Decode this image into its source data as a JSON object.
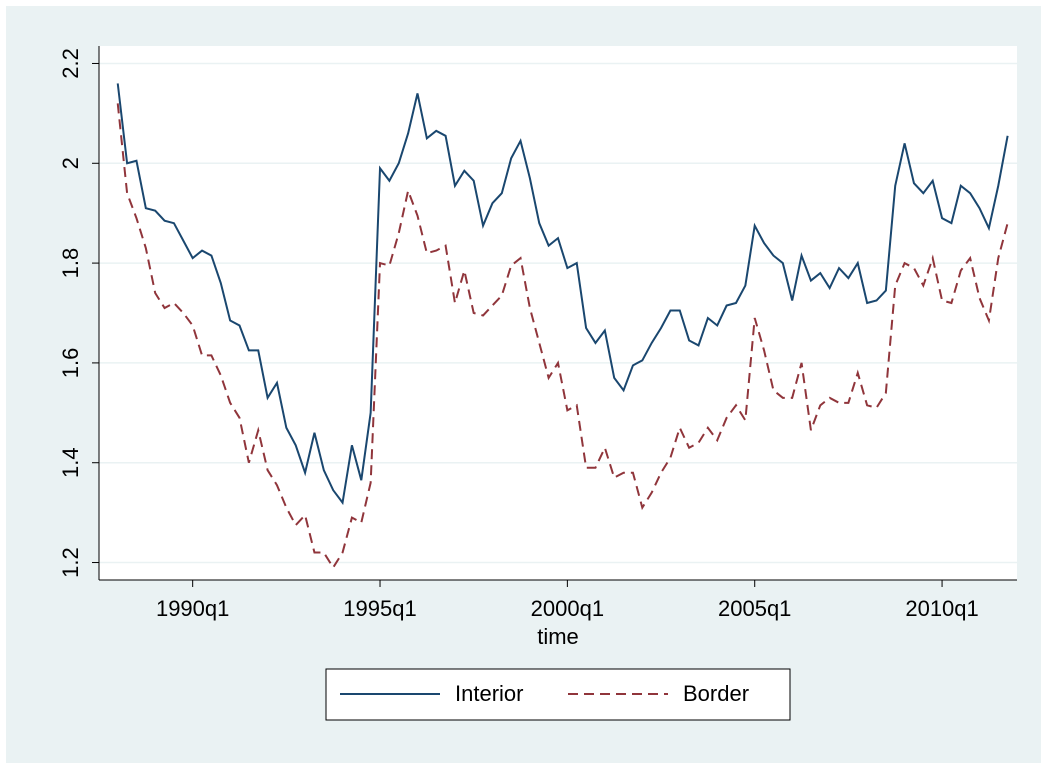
{
  "chart_data": {
    "type": "line",
    "x_label": "time",
    "x": [
      "1988q1",
      "1988q2",
      "1988q3",
      "1988q4",
      "1989q1",
      "1989q2",
      "1989q3",
      "1989q4",
      "1990q1",
      "1990q2",
      "1990q3",
      "1990q4",
      "1991q1",
      "1991q2",
      "1991q3",
      "1991q4",
      "1992q1",
      "1992q2",
      "1992q3",
      "1992q4",
      "1993q1",
      "1993q2",
      "1993q3",
      "1993q4",
      "1994q1",
      "1994q2",
      "1994q3",
      "1994q4",
      "1995q1",
      "1995q2",
      "1995q3",
      "1995q4",
      "1996q1",
      "1996q2",
      "1996q3",
      "1996q4",
      "1997q1",
      "1997q2",
      "1997q3",
      "1997q4",
      "1998q1",
      "1998q2",
      "1998q3",
      "1998q4",
      "1999q1",
      "1999q2",
      "1999q3",
      "1999q4",
      "2000q1",
      "2000q2",
      "2000q3",
      "2000q4",
      "2001q1",
      "2001q2",
      "2001q3",
      "2001q4",
      "2002q1",
      "2002q2",
      "2002q3",
      "2002q4",
      "2003q1",
      "2003q2",
      "2003q3",
      "2003q4",
      "2004q1",
      "2004q2",
      "2004q3",
      "2004q4",
      "2005q1",
      "2005q2",
      "2005q3",
      "2005q4",
      "2006q1",
      "2006q2",
      "2006q3",
      "2006q4",
      "2007q1",
      "2007q2",
      "2007q3",
      "2007q4",
      "2008q1",
      "2008q2",
      "2008q3",
      "2008q4",
      "2009q1",
      "2009q2",
      "2009q3",
      "2009q4",
      "2010q1",
      "2010q2",
      "2010q3",
      "2010q4",
      "2011q1",
      "2011q2",
      "2011q3",
      "2011q4"
    ],
    "series": [
      {
        "name": "Interior",
        "color": "#1a476f",
        "dash": "solid",
        "values": [
          2.16,
          2.0,
          2.005,
          1.91,
          1.905,
          1.885,
          1.88,
          1.845,
          1.81,
          1.825,
          1.815,
          1.76,
          1.685,
          1.675,
          1.625,
          1.625,
          1.53,
          1.56,
          1.47,
          1.435,
          1.38,
          1.46,
          1.385,
          1.345,
          1.32,
          1.435,
          1.365,
          1.5,
          1.99,
          1.965,
          2.0,
          2.06,
          2.14,
          2.05,
          2.065,
          2.055,
          1.955,
          1.985,
          1.965,
          1.875,
          1.92,
          1.94,
          2.01,
          2.045,
          1.97,
          1.88,
          1.835,
          1.85,
          1.79,
          1.8,
          1.67,
          1.64,
          1.665,
          1.57,
          1.545,
          1.595,
          1.605,
          1.64,
          1.67,
          1.705,
          1.705,
          1.645,
          1.635,
          1.69,
          1.675,
          1.715,
          1.72,
          1.755,
          1.875,
          1.84,
          1.815,
          1.8,
          1.725,
          1.815,
          1.765,
          1.78,
          1.75,
          1.79,
          1.77,
          1.8,
          1.72,
          1.725,
          1.745,
          1.955,
          2.04,
          1.96,
          1.94,
          1.965,
          1.89,
          1.88,
          1.955,
          1.94,
          1.91,
          1.87,
          1.955,
          2.055
        ]
      },
      {
        "name": "Border",
        "color": "#90353b",
        "dash": "dashed",
        "values": [
          2.12,
          1.94,
          1.89,
          1.83,
          1.74,
          1.71,
          1.72,
          1.7,
          1.675,
          1.615,
          1.615,
          1.575,
          1.52,
          1.49,
          1.4,
          1.465,
          1.385,
          1.355,
          1.31,
          1.275,
          1.295,
          1.22,
          1.22,
          1.19,
          1.22,
          1.29,
          1.28,
          1.36,
          1.8,
          1.795,
          1.86,
          1.945,
          1.895,
          1.82,
          1.825,
          1.835,
          1.72,
          1.785,
          1.7,
          1.695,
          1.715,
          1.735,
          1.795,
          1.81,
          1.71,
          1.64,
          1.57,
          1.6,
          1.505,
          1.515,
          1.39,
          1.39,
          1.43,
          1.37,
          1.38,
          1.38,
          1.31,
          1.34,
          1.38,
          1.41,
          1.47,
          1.43,
          1.44,
          1.47,
          1.445,
          1.49,
          1.515,
          1.485,
          1.69,
          1.625,
          1.545,
          1.53,
          1.53,
          1.6,
          1.465,
          1.515,
          1.53,
          1.52,
          1.52,
          1.58,
          1.515,
          1.51,
          1.54,
          1.755,
          1.8,
          1.79,
          1.755,
          1.81,
          1.725,
          1.72,
          1.785,
          1.81,
          1.73,
          1.685,
          1.81,
          1.88
        ]
      }
    ],
    "xlim": [
      "1987q3",
      "2012q1"
    ],
    "xticks": [
      "1990q1",
      "1995q1",
      "2000q1",
      "2005q1",
      "2010q1"
    ],
    "ylim": [
      1.165,
      2.235
    ],
    "yticks": [
      1.2,
      1.4,
      1.6,
      1.8,
      2,
      2.2
    ],
    "grid": true,
    "legend": "bottom"
  }
}
